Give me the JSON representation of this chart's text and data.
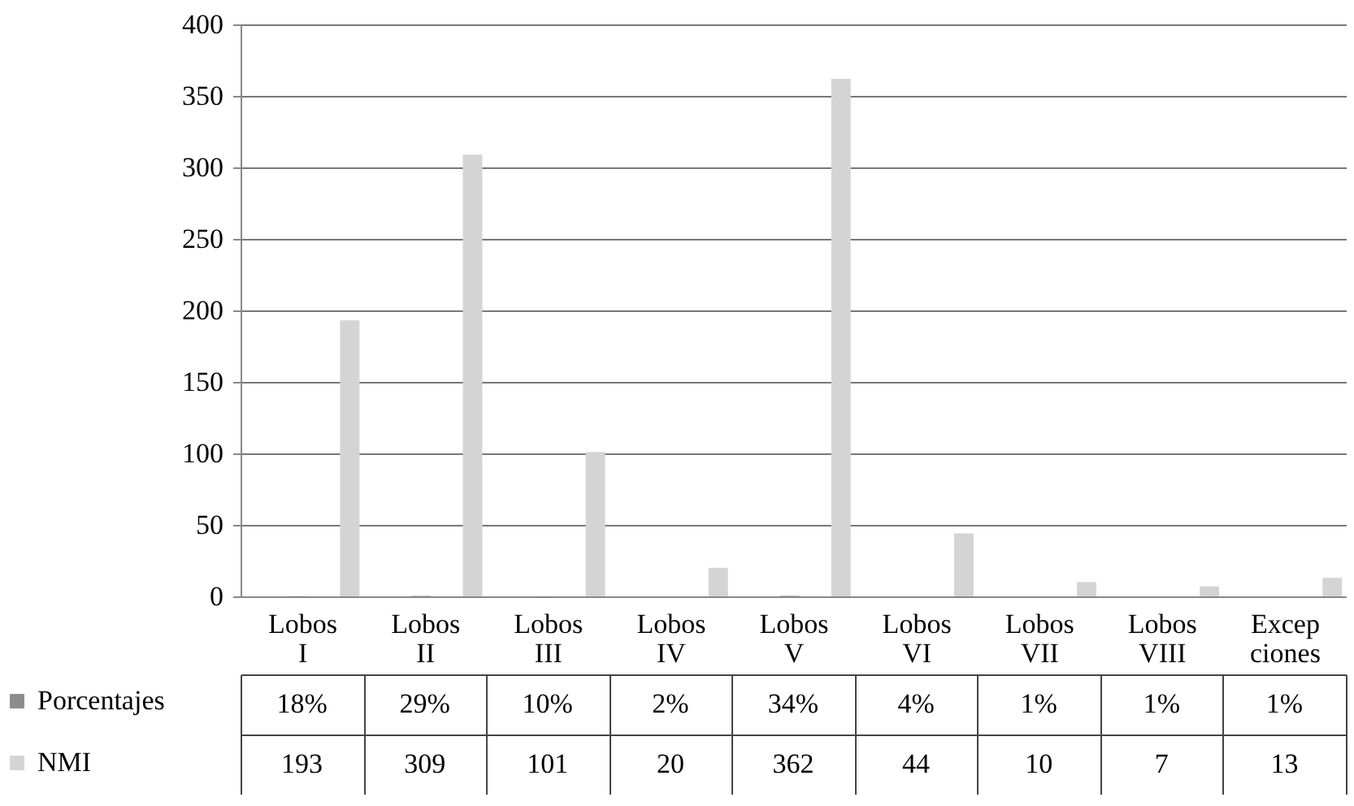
{
  "chart_data": {
    "type": "bar",
    "categories": [
      "Lobos\nI",
      "Lobos\nII",
      "Lobos\nIII",
      "Lobos\nIV",
      "Lobos\nV",
      "Lobos\nVI",
      "Lobos\nVII",
      "Lobos\nVIII",
      "Excep\nciones"
    ],
    "series": [
      {
        "name": "Porcentajes",
        "color": "#8c8c8c",
        "values": [
          0.18,
          0.29,
          0.1,
          0.02,
          0.34,
          0.04,
          0.01,
          0.01,
          0.01
        ],
        "value_labels": [
          "18%",
          "29%",
          "10%",
          "2%",
          "34%",
          "4%",
          "1%",
          "1%",
          "1%"
        ]
      },
      {
        "name": "NMI",
        "color": "#d4d4d4",
        "values": [
          193,
          309,
          101,
          20,
          362,
          44,
          10,
          7,
          13
        ]
      }
    ],
    "ylim": [
      0,
      400
    ],
    "yticks": [
      0,
      50,
      100,
      150,
      200,
      250,
      300,
      350,
      400
    ],
    "grid": "y",
    "legend": "bottom left",
    "data_labels": true
  }
}
